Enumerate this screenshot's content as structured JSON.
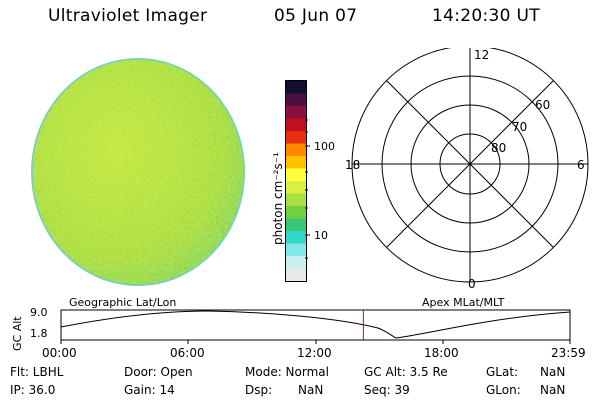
{
  "header": {
    "instrument": "Ultraviolet Imager",
    "date": "05 Jun 07",
    "time": "14:20:30 UT"
  },
  "colorbar": {
    "unit_label": "photon cm⁻²s⁻¹",
    "tick_labels": [
      "100",
      "10"
    ],
    "colors": [
      "#101030",
      "#4a1040",
      "#8a1040",
      "#c01020",
      "#e83010",
      "#ff8800",
      "#ffc000",
      "#ffff40",
      "#d8f040",
      "#a8e040",
      "#70d040",
      "#38c878",
      "#30d8c8",
      "#80e8e8",
      "#c8f0f0",
      "#e8eaea"
    ]
  },
  "polar_plot": {
    "mlt_labels": {
      "top": "12",
      "left": "18",
      "right": "6",
      "bottom": "0"
    },
    "lat_labels": [
      "60",
      "70",
      "80"
    ]
  },
  "timeline": {
    "axis_title": "GC Alt",
    "y_ticks": [
      "9.0",
      "1.8"
    ],
    "left_title": "Geographic Lat/Lon",
    "right_title": "Apex MLat/MLT",
    "x_ticks": [
      "00:00",
      "06:00",
      "12:00",
      "18:00",
      "23:59"
    ],
    "current_time_fraction": 0.594
  },
  "status": {
    "flt": "Flt: LBHL",
    "ip": "IP: 36.0",
    "door": "Door: Open",
    "gain": "Gain: 14",
    "mode": "Mode: Normal",
    "dsp": "Dsp:",
    "dsp_value": "NaN",
    "gc_alt": "GC Alt: 3.5 Re",
    "seq": "Seq: 39",
    "glat": "GLat:",
    "glat_value": "NaN",
    "glon": "GLon:",
    "glon_value": "NaN"
  }
}
